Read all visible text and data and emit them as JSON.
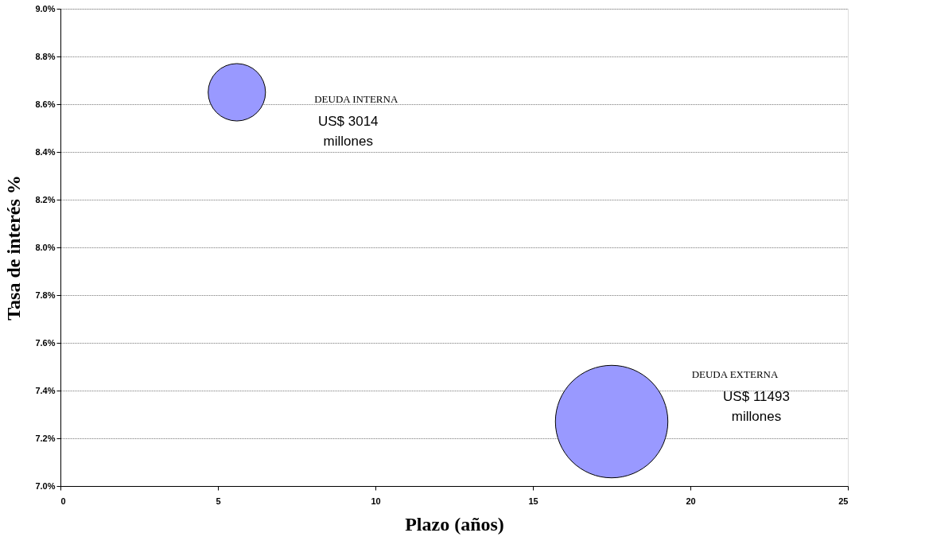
{
  "chart_data": {
    "type": "bubble",
    "xlabel": "Plazo  (años)",
    "ylabel": "Tasa de interés %",
    "x": [
      5.6,
      17.5
    ],
    "series": [
      {
        "color": "#9999ff",
        "values": [
          8.65,
          7.27
        ],
        "sizes": [
          0.26,
          1
        ]
      }
    ],
    "xlim": [
      0,
      25
    ],
    "xticks": [
      0,
      5,
      10,
      15,
      20,
      25
    ],
    "ylim": [
      7.0,
      9.0
    ],
    "yticks": [
      {
        "value": 7.0,
        "label": "7.0%"
      },
      {
        "value": 7.2,
        "label": "7.2%"
      },
      {
        "value": 7.4,
        "label": "7.4%"
      },
      {
        "value": 7.6,
        "label": "7.6%"
      },
      {
        "value": 7.8,
        "label": "7.8%"
      },
      {
        "value": 8.0,
        "label": "8.0%"
      },
      {
        "value": 8.2,
        "label": "8.2%"
      },
      {
        "value": 8.4,
        "label": "8.4%"
      },
      {
        "value": 8.6,
        "label": "8.6%"
      },
      {
        "value": 8.8,
        "label": "8.8%"
      },
      {
        "value": 9.0,
        "label": "9.0%"
      }
    ],
    "grid": "y",
    "annotations": [
      "DEUDA INTERNA",
      "US$ 3014",
      "millones",
      "DEUDA EXTERNA",
      "US$ 11493",
      "millones"
    ]
  }
}
